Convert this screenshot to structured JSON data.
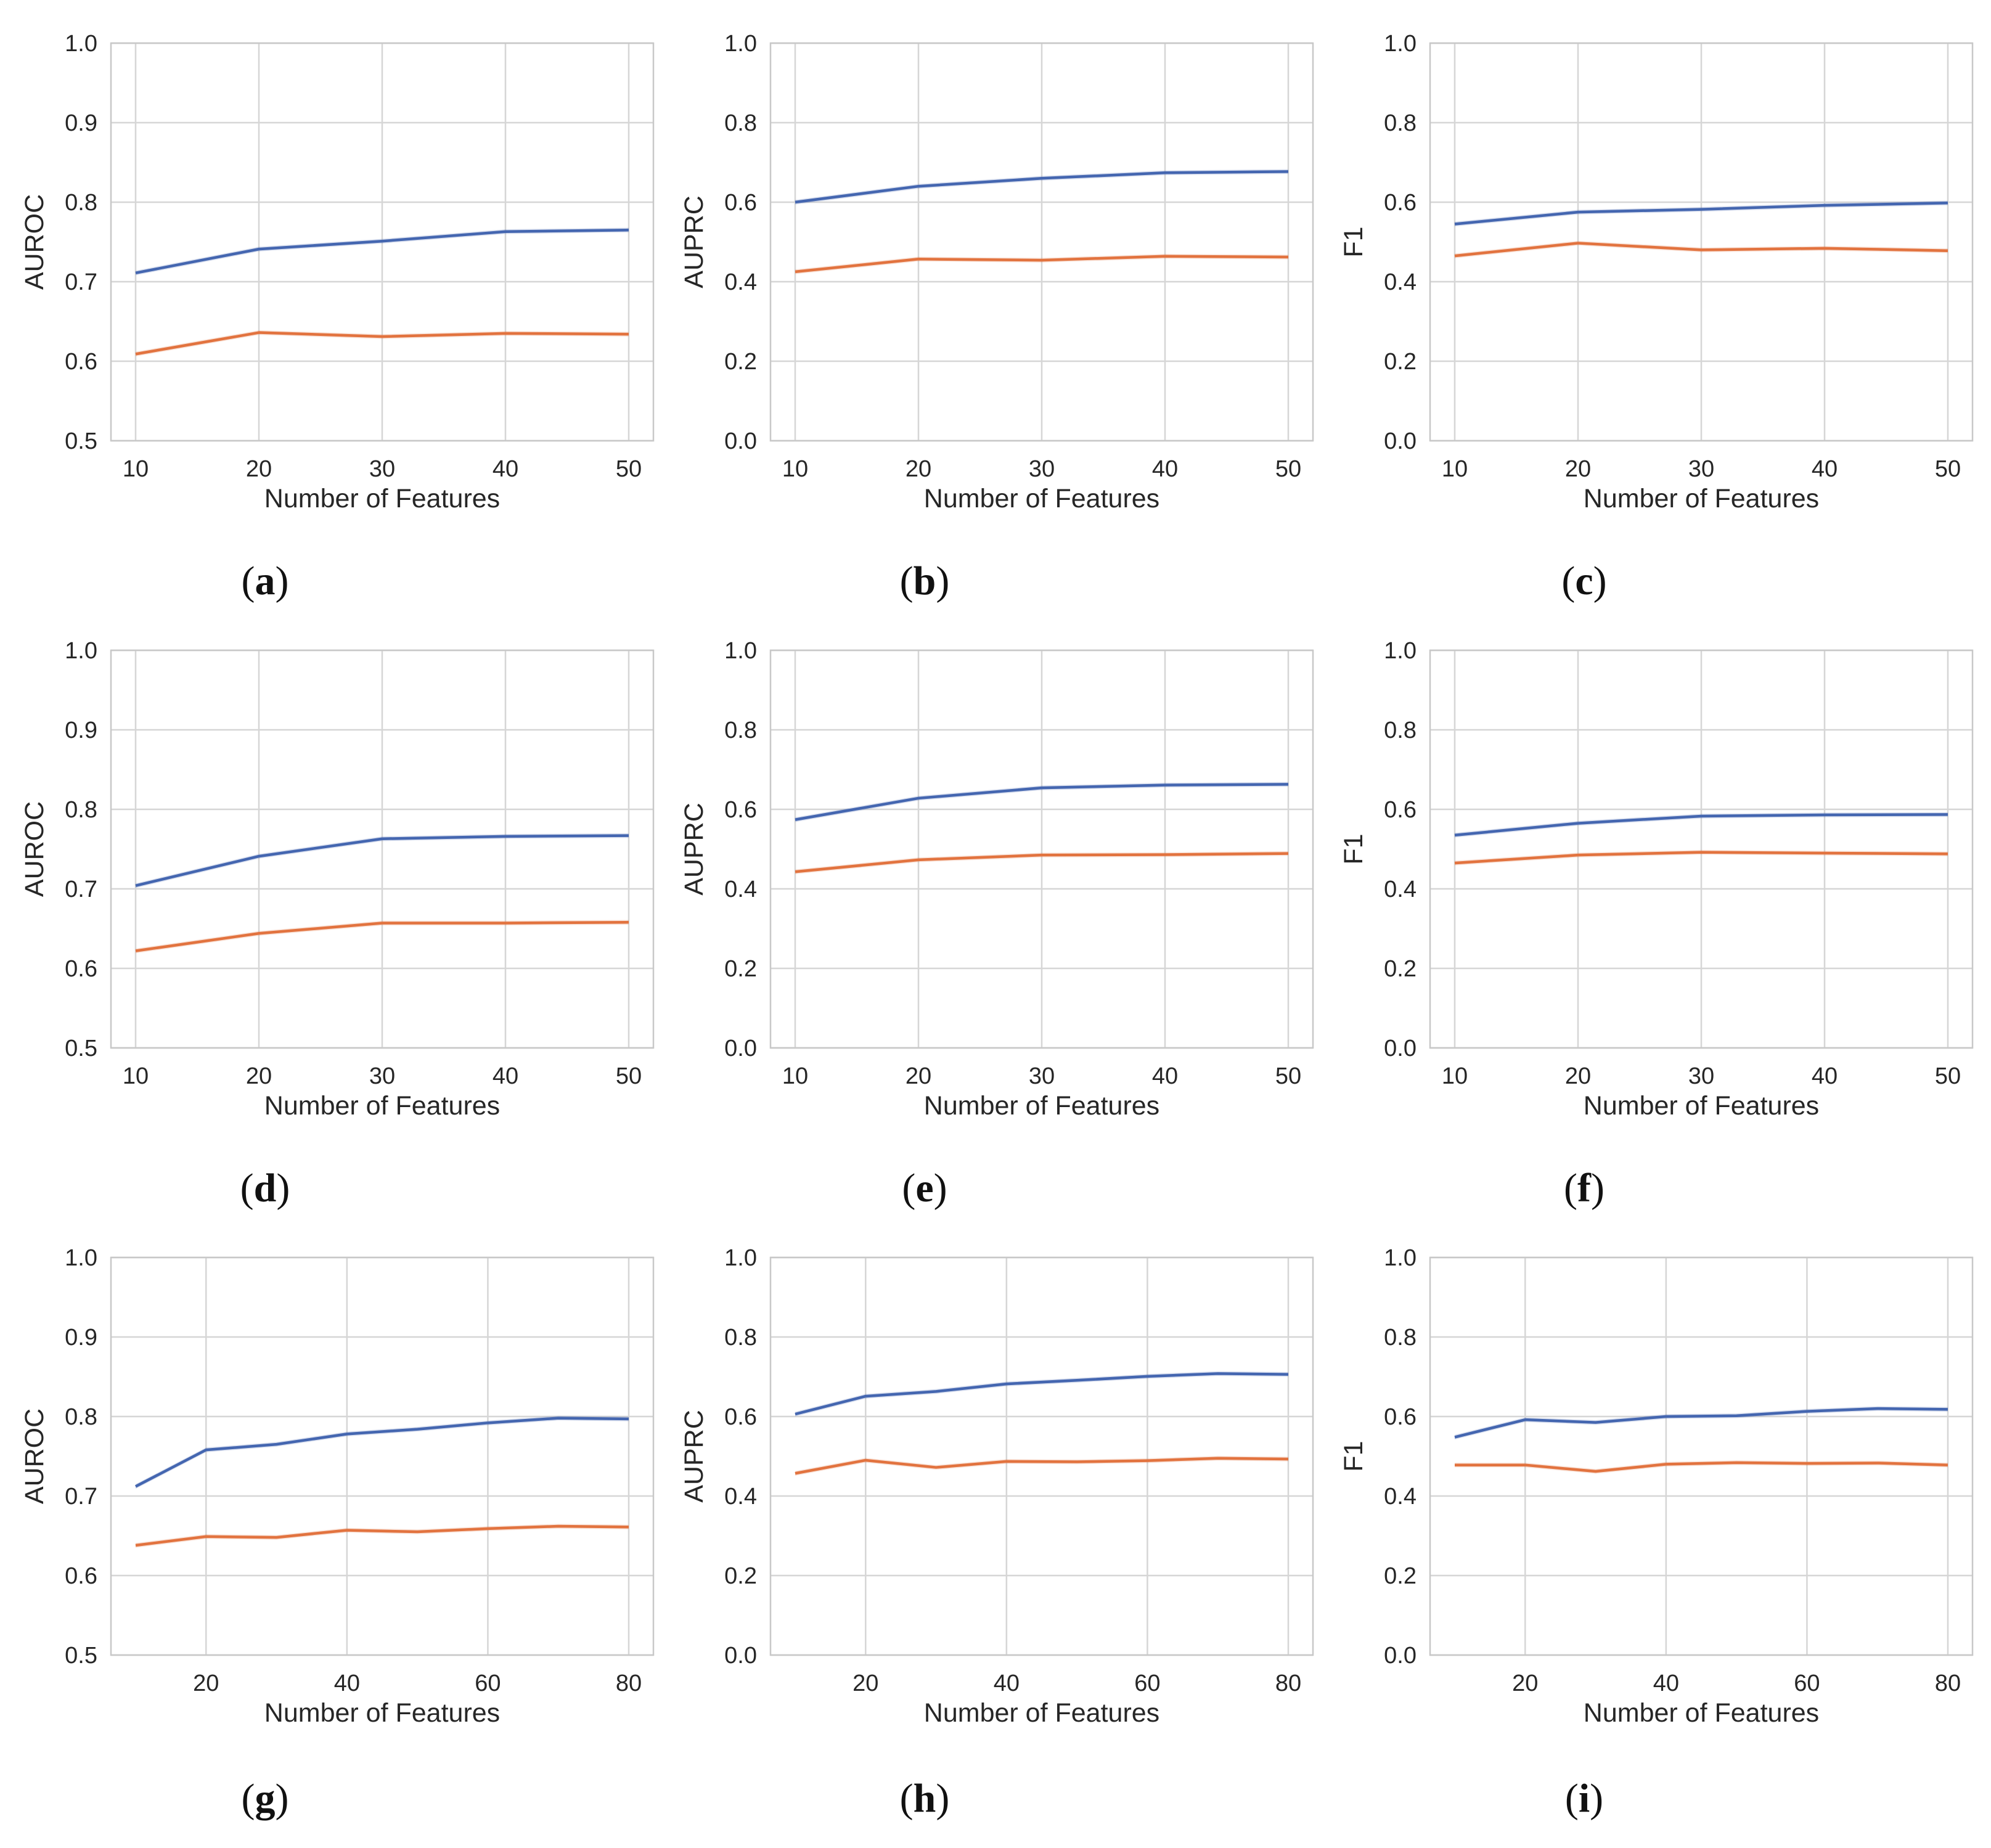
{
  "colors": {
    "series1": "#4466b0",
    "series2": "#e2733f",
    "grid": "#d6d6d6",
    "frame": "#c8c8c8"
  },
  "chart_data": [
    {
      "panel": "(a)",
      "caption_letter": "a",
      "type": "line",
      "xlabel": "Number of Features",
      "ylabel": "AUROC",
      "xlim": [
        8,
        52
      ],
      "ylim": [
        0.5,
        1.0
      ],
      "xticks": [
        10,
        20,
        30,
        40,
        50
      ],
      "yticks": [
        "0.5",
        "0.6",
        "0.7",
        "0.8",
        "0.9",
        "1.0"
      ],
      "ytick_values": [
        0.5,
        0.6,
        0.7,
        0.8,
        0.9,
        1.0
      ],
      "x": [
        10,
        20,
        30,
        40,
        50
      ],
      "series": [
        {
          "values": [
            0.711,
            0.741,
            0.751,
            0.763,
            0.765
          ]
        },
        {
          "values": [
            0.609,
            0.636,
            0.631,
            0.635,
            0.634
          ]
        }
      ]
    },
    {
      "panel": "(b)",
      "caption_letter": "b",
      "type": "line",
      "xlabel": "Number of Features",
      "ylabel": "AUPRC",
      "xlim": [
        8,
        52
      ],
      "ylim": [
        0.0,
        1.0
      ],
      "xticks": [
        10,
        20,
        30,
        40,
        50
      ],
      "yticks": [
        "0.0",
        "0.2",
        "0.4",
        "0.6",
        "0.8",
        "1.0"
      ],
      "ytick_values": [
        0,
        0.2,
        0.4,
        0.6,
        0.8,
        1.0
      ],
      "x": [
        10,
        20,
        30,
        40,
        50
      ],
      "series": [
        {
          "values": [
            0.6,
            0.64,
            0.66,
            0.674,
            0.677
          ]
        },
        {
          "values": [
            0.425,
            0.457,
            0.454,
            0.464,
            0.462
          ]
        }
      ]
    },
    {
      "panel": "(c)",
      "caption_letter": "c",
      "type": "line",
      "xlabel": "Number of Features",
      "ylabel": "F1",
      "xlim": [
        8,
        52
      ],
      "ylim": [
        0.0,
        1.0
      ],
      "xticks": [
        10,
        20,
        30,
        40,
        50
      ],
      "yticks": [
        "0.0",
        "0.2",
        "0.4",
        "0.6",
        "0.8",
        "1.0"
      ],
      "ytick_values": [
        0,
        0.2,
        0.4,
        0.6,
        0.8,
        1.0
      ],
      "x": [
        10,
        20,
        30,
        40,
        50
      ],
      "series": [
        {
          "values": [
            0.545,
            0.575,
            0.582,
            0.592,
            0.598
          ]
        },
        {
          "values": [
            0.465,
            0.497,
            0.48,
            0.484,
            0.478
          ]
        }
      ]
    },
    {
      "panel": "(d)",
      "caption_letter": "d",
      "type": "line",
      "xlabel": "Number of Features",
      "ylabel": "AUROC",
      "xlim": [
        8,
        52
      ],
      "ylim": [
        0.5,
        1.0
      ],
      "xticks": [
        10,
        20,
        30,
        40,
        50
      ],
      "yticks": [
        "0.5",
        "0.6",
        "0.7",
        "0.8",
        "0.9",
        "1.0"
      ],
      "ytick_values": [
        0.5,
        0.6,
        0.7,
        0.8,
        0.9,
        1.0
      ],
      "x": [
        10,
        20,
        30,
        40,
        50
      ],
      "series": [
        {
          "values": [
            0.704,
            0.741,
            0.763,
            0.766,
            0.767
          ]
        },
        {
          "values": [
            0.622,
            0.644,
            0.657,
            0.657,
            0.658
          ]
        }
      ]
    },
    {
      "panel": "(e)",
      "caption_letter": "e",
      "type": "line",
      "xlabel": "Number of Features",
      "ylabel": "AUPRC",
      "xlim": [
        8,
        52
      ],
      "ylim": [
        0.0,
        1.0
      ],
      "xticks": [
        10,
        20,
        30,
        40,
        50
      ],
      "yticks": [
        "0.0",
        "0.2",
        "0.4",
        "0.6",
        "0.8",
        "1.0"
      ],
      "ytick_values": [
        0,
        0.2,
        0.4,
        0.6,
        0.8,
        1.0
      ],
      "x": [
        10,
        20,
        30,
        40,
        50
      ],
      "series": [
        {
          "values": [
            0.574,
            0.628,
            0.654,
            0.661,
            0.663
          ]
        },
        {
          "values": [
            0.443,
            0.473,
            0.485,
            0.486,
            0.489
          ]
        }
      ]
    },
    {
      "panel": "(f)",
      "caption_letter": "f",
      "type": "line",
      "xlabel": "Number of Features",
      "ylabel": "F1",
      "xlim": [
        8,
        52
      ],
      "ylim": [
        0.0,
        1.0
      ],
      "xticks": [
        10,
        20,
        30,
        40,
        50
      ],
      "yticks": [
        "0.0",
        "0.2",
        "0.4",
        "0.6",
        "0.8",
        "1.0"
      ],
      "ytick_values": [
        0,
        0.2,
        0.4,
        0.6,
        0.8,
        1.0
      ],
      "x": [
        10,
        20,
        30,
        40,
        50
      ],
      "series": [
        {
          "values": [
            0.535,
            0.565,
            0.583,
            0.586,
            0.587
          ]
        },
        {
          "values": [
            0.465,
            0.485,
            0.492,
            0.49,
            0.488
          ]
        }
      ]
    },
    {
      "panel": "(g)",
      "caption_letter": "g",
      "type": "line",
      "xlabel": "Number of Features",
      "ylabel": "AUROC",
      "xlim": [
        6.5,
        83.5
      ],
      "ylim": [
        0.5,
        1.0
      ],
      "xticks": [
        20,
        40,
        60,
        80
      ],
      "yticks": [
        "0.5",
        "0.6",
        "0.7",
        "0.8",
        "0.9",
        "1.0"
      ],
      "ytick_values": [
        0.5,
        0.6,
        0.7,
        0.8,
        0.9,
        1.0
      ],
      "x": [
        10,
        20,
        30,
        40,
        50,
        60,
        70,
        80
      ],
      "series": [
        {
          "values": [
            0.712,
            0.758,
            0.765,
            0.778,
            0.784,
            0.792,
            0.798,
            0.797
          ]
        },
        {
          "values": [
            0.638,
            0.649,
            0.648,
            0.657,
            0.655,
            0.659,
            0.662,
            0.661
          ]
        }
      ]
    },
    {
      "panel": "(h)",
      "caption_letter": "h",
      "type": "line",
      "xlabel": "Number of Features",
      "ylabel": "AUPRC",
      "xlim": [
        6.5,
        83.5
      ],
      "ylim": [
        0.0,
        1.0
      ],
      "xticks": [
        20,
        40,
        60,
        80
      ],
      "yticks": [
        "0.0",
        "0.2",
        "0.4",
        "0.6",
        "0.8",
        "1.0"
      ],
      "ytick_values": [
        0,
        0.2,
        0.4,
        0.6,
        0.8,
        1.0
      ],
      "x": [
        10,
        20,
        30,
        40,
        50,
        60,
        70,
        80
      ],
      "series": [
        {
          "values": [
            0.606,
            0.651,
            0.663,
            0.682,
            0.691,
            0.701,
            0.708,
            0.706
          ]
        },
        {
          "values": [
            0.457,
            0.49,
            0.472,
            0.487,
            0.486,
            0.489,
            0.495,
            0.493
          ]
        }
      ]
    },
    {
      "panel": "(i)",
      "caption_letter": "i",
      "type": "line",
      "xlabel": "Number of Features",
      "ylabel": "F1",
      "xlim": [
        6.5,
        83.5
      ],
      "ylim": [
        0.0,
        1.0
      ],
      "xticks": [
        20,
        40,
        60,
        80
      ],
      "yticks": [
        "0.0",
        "0.2",
        "0.4",
        "0.6",
        "0.8",
        "1.0"
      ],
      "ytick_values": [
        0,
        0.2,
        0.4,
        0.6,
        0.8,
        1.0
      ],
      "x": [
        10,
        20,
        30,
        40,
        50,
        60,
        70,
        80
      ],
      "series": [
        {
          "values": [
            0.548,
            0.592,
            0.585,
            0.6,
            0.602,
            0.613,
            0.62,
            0.618
          ]
        },
        {
          "values": [
            0.478,
            0.478,
            0.462,
            0.48,
            0.484,
            0.482,
            0.483,
            0.478
          ]
        }
      ]
    }
  ]
}
